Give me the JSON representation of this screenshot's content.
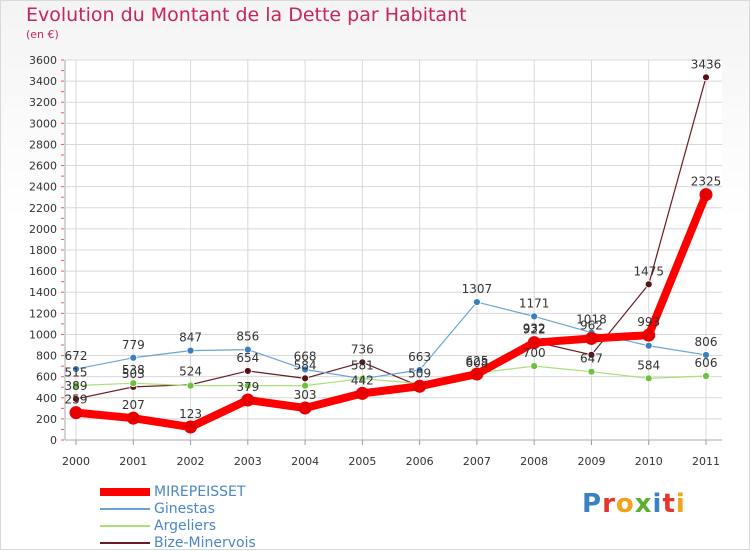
{
  "title": "Evolution du Montant de la Dette par Habitant",
  "subtitle": "(en €)",
  "logo": {
    "text": "Proxiti",
    "colors": [
      "#3b82c4",
      "#e8352c",
      "#f4a21b",
      "#5bb030",
      "#3b82c4",
      "#e8352c",
      "#f4a21b"
    ]
  },
  "chart_data": {
    "type": "line",
    "x": [
      "2000",
      "2001",
      "2002",
      "2003",
      "2004",
      "2005",
      "2006",
      "2007",
      "2008",
      "2009",
      "2010",
      "2011"
    ],
    "ylim": [
      0,
      3600
    ],
    "yticks": [
      0,
      200,
      400,
      600,
      800,
      1000,
      1200,
      1400,
      1600,
      1800,
      2000,
      2200,
      2400,
      2600,
      2800,
      3000,
      3200,
      3400,
      3600
    ],
    "grid": true,
    "legend_position": "bottom-left",
    "series": [
      {
        "name": "Bize-Minervois",
        "color": "#6b1a22",
        "marker": "#5a1218",
        "width": 1.2,
        "radius": 3.5,
        "values": [
          389,
          503,
          524,
          654,
          584,
          736,
          509,
          608,
          932,
          807,
          1475,
          3436
        ],
        "labels": [
          "389",
          "503",
          "524",
          "654",
          "584",
          "736",
          "509",
          "608",
          "932",
          "",
          "1475",
          "3436"
        ]
      },
      {
        "name": "Ginestas",
        "color": "#6aa4d6",
        "marker": "#3a7fc0",
        "width": 1.2,
        "radius": 3.5,
        "values": [
          672,
          779,
          847,
          856,
          668,
          581,
          663,
          1307,
          1171,
          1018,
          893,
          806
        ],
        "labels": [
          "672",
          "779",
          "847",
          "856",
          "668",
          "581",
          "663",
          "1307",
          "1171",
          "1018",
          "",
          "806"
        ]
      },
      {
        "name": "Argeliers",
        "color": "#a9e07a",
        "marker": "#6cc23c",
        "width": 1.2,
        "radius": 3.5,
        "values": [
          515,
          538,
          515,
          515,
          515,
          581,
          535,
          635,
          700,
          647,
          584,
          606
        ],
        "labels": [
          "515",
          "538",
          "",
          "",
          "",
          "",
          "",
          "",
          "700",
          "647",
          "584",
          "606"
        ]
      },
      {
        "name": "MIREPEISSET",
        "color": "#ff0000",
        "marker": "#e80000",
        "width": 8,
        "radius": 6.5,
        "values": [
          259,
          207,
          123,
          379,
          303,
          442,
          509,
          625,
          922,
          962,
          993,
          2325
        ],
        "labels": [
          "259",
          "207",
          "123",
          "379",
          "303",
          "442",
          "",
          "625",
          "922",
          "962",
          "993",
          "2325"
        ]
      }
    ],
    "legend": [
      {
        "name": "MIREPEISSET",
        "color": "#ff0000",
        "thickness": 8
      },
      {
        "name": "Ginestas",
        "color": "#6aa4d6",
        "thickness": 2
      },
      {
        "name": "Argeliers",
        "color": "#a9e07a",
        "thickness": 2
      },
      {
        "name": "Bize-Minervois",
        "color": "#6b1a22",
        "thickness": 2
      }
    ]
  }
}
